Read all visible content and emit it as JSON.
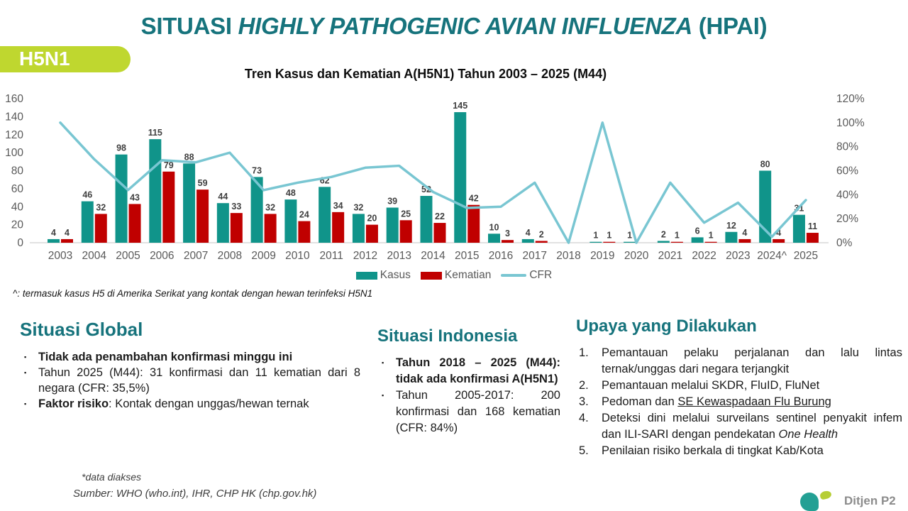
{
  "slide": {
    "title_prefix": "SITUASI ",
    "title_italic": "HIGHLY PATHOGENIC AVIAN INFLUENZA",
    "title_suffix": " (HPAI)",
    "badge_label": "H5N1",
    "footnote": "^: termasuk kasus H5 di Amerika Serikat yang kontak dengan hewan terinfeksi H5N1",
    "data_accessed_note": "*data diakses",
    "source_line": "Sumber: WHO (who.int), IHR, CHP HK (chp.gov.hk)",
    "logo_text": "Ditjen P2",
    "bullet_char": "▪"
  },
  "chart_data": {
    "type": "bar+line",
    "title": "Tren Kasus dan Kematian A(H5N1) Tahun 2003 – 2025 (M44)",
    "categories": [
      "2003",
      "2004",
      "2005",
      "2006",
      "2007",
      "2008",
      "2009",
      "2010",
      "2011",
      "2012",
      "2013",
      "2014",
      "2015",
      "2016",
      "2017",
      "2018",
      "2019",
      "2020",
      "2021",
      "2022",
      "2023",
      "2024^",
      "2025"
    ],
    "series": [
      {
        "name": "Kasus",
        "type": "bar",
        "color": "#10948A",
        "values": [
          4,
          46,
          98,
          115,
          88,
          44,
          73,
          48,
          62,
          32,
          39,
          52,
          145,
          10,
          4,
          0,
          1,
          1,
          2,
          6,
          12,
          80,
          31
        ]
      },
      {
        "name": "Kematian",
        "type": "bar",
        "color": "#C00000",
        "values": [
          4,
          32,
          43,
          79,
          59,
          33,
          32,
          24,
          34,
          20,
          25,
          22,
          42,
          3,
          2,
          0,
          1,
          0,
          1,
          1,
          4,
          4,
          11
        ]
      },
      {
        "name": "CFR",
        "type": "line",
        "color": "#79C6D2",
        "axis": "right",
        "values": [
          100,
          69.6,
          43.9,
          68.7,
          67,
          75,
          43.8,
          50,
          54.8,
          62.5,
          64.1,
          42.3,
          29,
          30,
          50,
          0,
          100,
          0,
          50,
          16.7,
          33.3,
          5,
          35.5
        ]
      }
    ],
    "left_axis": {
      "min": 0,
      "max": 160,
      "step": 20,
      "ticks": [
        0,
        20,
        40,
        60,
        80,
        100,
        120,
        140,
        160
      ]
    },
    "right_axis": {
      "min": 0,
      "max": 120,
      "step": 20,
      "labels": [
        "0%",
        "20%",
        "40%",
        "60%",
        "80%",
        "100%",
        "120%"
      ]
    },
    "legend_position": "bottom",
    "grid": false
  },
  "sections": {
    "global": {
      "heading": "Situasi Global",
      "bullets": [
        {
          "segments": [
            {
              "text": "Tidak ada penambahan konfirmasi minggu ini",
              "style": "bold"
            }
          ]
        },
        {
          "segments": [
            {
              "text": "Tahun 2025 (M44): 31 konfirmasi dan 11 kematian dari 8 negara (CFR: 35,5%)",
              "style": "normal"
            }
          ]
        },
        {
          "segments": [
            {
              "text": "Faktor risiko",
              "style": "bold"
            },
            {
              "text": ": Kontak dengan unggas/hewan ternak",
              "style": "normal"
            }
          ]
        }
      ]
    },
    "indonesia": {
      "heading": "Situasi Indonesia",
      "bullets": [
        {
          "segments": [
            {
              "text": "Tahun 2018 – 2025 (M44): tidak ada konfirmasi A(H5N1)",
              "style": "bold"
            }
          ]
        },
        {
          "segments": [
            {
              "text": "Tahun 2005-2017: 200 konfirmasi dan 168 kematian (CFR: 84%)",
              "style": "normal"
            }
          ]
        }
      ]
    },
    "upaya": {
      "heading": "Upaya yang Dilakukan",
      "items": [
        {
          "num": "1.",
          "segments": [
            {
              "text": "Pemantauan pelaku perjalanan dan lalu lintas ternak/unggas dari negara terjangkit",
              "style": "normal"
            }
          ]
        },
        {
          "num": "2.",
          "segments": [
            {
              "text": "Pemantauan melalui SKDR, FluID, FluNet",
              "style": "normal"
            }
          ]
        },
        {
          "num": "3.",
          "segments": [
            {
              "text": "Pedoman dan ",
              "style": "normal"
            },
            {
              "text": "SE Kewaspadaan Flu Burung",
              "style": "underline",
              "link": true
            }
          ]
        },
        {
          "num": "4.",
          "segments": [
            {
              "text": "Deteksi dini melalui surveilans sentinel penyakit infem dan ILI-SARI dengan pendekatan ",
              "style": "normal"
            },
            {
              "text": "One Health",
              "style": "italic"
            }
          ]
        },
        {
          "num": "5.",
          "segments": [
            {
              "text": "Penilaian risiko berkala di tingkat Kab/Kota",
              "style": "normal"
            }
          ]
        }
      ]
    }
  },
  "colors": {
    "accent_teal": "#16737C",
    "bar_kasus": "#10948A",
    "bar_kematian": "#C00000",
    "cfr_line": "#79C6D2",
    "badge_green": "#BFD72F",
    "axis_text": "#595959",
    "logo_teal": "#23A094",
    "logo_green": "#B6CE35"
  }
}
